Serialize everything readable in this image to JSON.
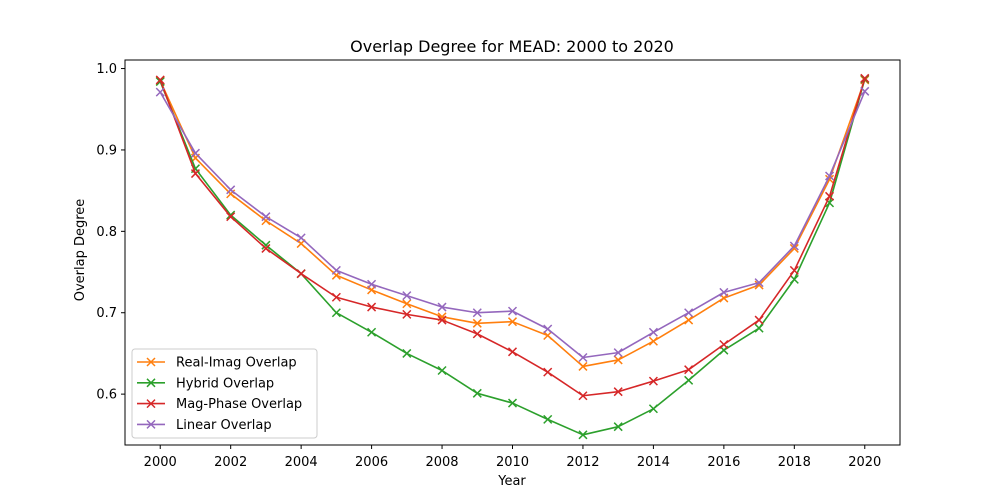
{
  "chart_data": {
    "type": "line",
    "title": "Overlap Degree for MEAD: 2000 to 2020",
    "xlabel": "Year",
    "ylabel": "Overlap Degree",
    "xlim": [
      1999.0,
      2021.0
    ],
    "ylim": [
      0.5375,
      1.0105
    ],
    "xticks": [
      2000,
      2002,
      2004,
      2006,
      2008,
      2010,
      2012,
      2014,
      2016,
      2018,
      2020
    ],
    "yticks": [
      0.6,
      0.7,
      0.8,
      0.9,
      1.0
    ],
    "ytick_labels": [
      "0.6",
      "0.7",
      "0.8",
      "0.9",
      "1.0"
    ],
    "grid": false,
    "legend_position": "lower-left",
    "marker": "x",
    "x": [
      2000,
      2001,
      2002,
      2003,
      2004,
      2005,
      2006,
      2007,
      2008,
      2009,
      2010,
      2011,
      2012,
      2013,
      2014,
      2015,
      2016,
      2017,
      2018,
      2019,
      2020
    ],
    "series": [
      {
        "name": "Real-Imag Overlap",
        "color": "#ff7f0e",
        "values": [
          0.985,
          0.89,
          0.846,
          0.813,
          0.785,
          0.746,
          0.728,
          0.711,
          0.695,
          0.687,
          0.689,
          0.672,
          0.634,
          0.642,
          0.665,
          0.691,
          0.718,
          0.734,
          0.779,
          0.864,
          0.986
        ]
      },
      {
        "name": "Hybrid Overlap",
        "color": "#2ca02c",
        "values": [
          0.984,
          0.877,
          0.82,
          0.783,
          0.748,
          0.7,
          0.676,
          0.65,
          0.629,
          0.601,
          0.589,
          0.569,
          0.55,
          0.56,
          0.582,
          0.617,
          0.654,
          0.681,
          0.741,
          0.835,
          0.987
        ]
      },
      {
        "name": "Mag-Phase Overlap",
        "color": "#d62728",
        "values": [
          0.986,
          0.871,
          0.818,
          0.779,
          0.748,
          0.719,
          0.707,
          0.698,
          0.691,
          0.674,
          0.652,
          0.627,
          0.598,
          0.603,
          0.616,
          0.63,
          0.661,
          0.691,
          0.752,
          0.843,
          0.988
        ]
      },
      {
        "name": "Linear Overlap",
        "color": "#9467bd",
        "values": [
          0.971,
          0.896,
          0.851,
          0.818,
          0.792,
          0.752,
          0.735,
          0.721,
          0.707,
          0.7,
          0.702,
          0.68,
          0.645,
          0.651,
          0.676,
          0.7,
          0.725,
          0.737,
          0.782,
          0.868,
          0.972
        ]
      }
    ]
  }
}
